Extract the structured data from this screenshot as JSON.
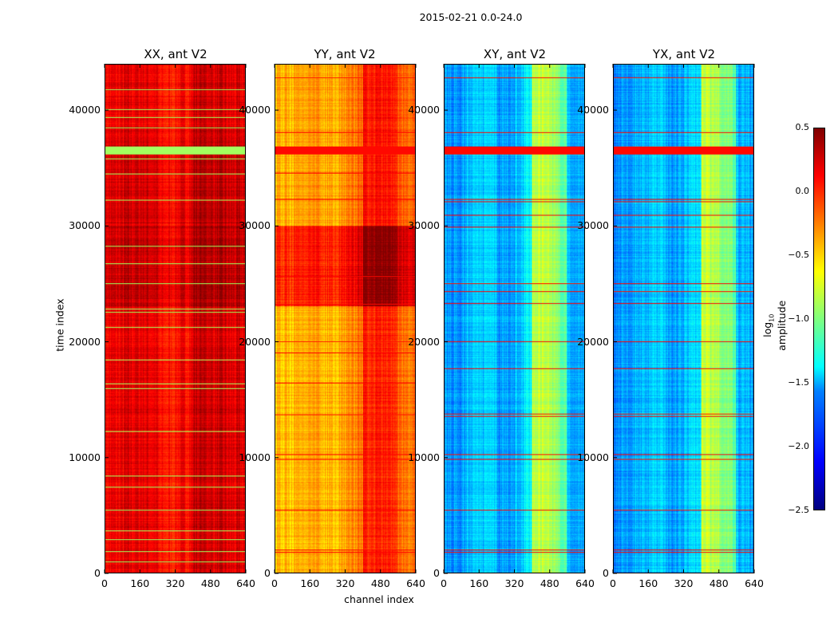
{
  "suptitle": "2015-02-21 0.0-24.0",
  "chart_data": [
    {
      "type": "heatmap",
      "title": "XX, ant V2",
      "xlabel": "",
      "ylabel": "time index",
      "xlim": [
        0,
        640
      ],
      "ylim": [
        0,
        44000
      ],
      "xticks": [
        "0",
        "160",
        "320",
        "480",
        "640"
      ],
      "yticks": [
        "0",
        "10000",
        "20000",
        "30000",
        "40000"
      ],
      "channel_profile": [
        0.15,
        0.2,
        0.22,
        0.05,
        0.1,
        0.3,
        0.25,
        0.2
      ],
      "time_segments": [
        {
          "from": 0,
          "to": 23000,
          "offset": 0
        },
        {
          "from": 23000,
          "to": 30000,
          "offset": 0.1
        },
        {
          "from": 30000,
          "to": 37000,
          "offset": 0.05
        },
        {
          "from": 37000,
          "to": 44000,
          "offset": 0
        }
      ],
      "flagged_rows": [
        900,
        1800,
        2800,
        3600,
        5400,
        7400,
        8300,
        12200,
        15900,
        16300,
        18400,
        21200,
        22500,
        22800,
        25000,
        26700,
        28200,
        32200,
        34500,
        35800,
        36600,
        38500,
        39400,
        40100,
        41800
      ],
      "flag_value": -0.9,
      "flag_band": [
        36200,
        36900
      ]
    },
    {
      "type": "heatmap",
      "title": "YY, ant V2",
      "xlabel": "channel index",
      "ylabel": "",
      "xlim": [
        0,
        640
      ],
      "ylim": [
        0,
        44000
      ],
      "xticks": [
        "0",
        "160",
        "320",
        "480",
        "640"
      ],
      "yticks": [
        "0",
        "10000",
        "20000",
        "30000",
        "40000"
      ],
      "channel_profile": [
        -0.45,
        -0.4,
        -0.38,
        -0.42,
        -0.35,
        0.05,
        0.0,
        -0.2
      ],
      "time_segments": [
        {
          "from": 0,
          "to": 23000,
          "offset": 0
        },
        {
          "from": 23000,
          "to": 30000,
          "offset": 0.45
        },
        {
          "from": 30000,
          "to": 44000,
          "offset": 0.05
        }
      ],
      "flagged_rows": [
        1700,
        1900,
        5400,
        9800,
        10200,
        13600,
        16400,
        19000,
        20000,
        23200,
        25600,
        32300,
        34600,
        38100,
        42800
      ],
      "flag_value": 0.1,
      "flag_band": [
        36200,
        36900
      ]
    },
    {
      "type": "heatmap",
      "title": "XY, ant V2",
      "xlabel": "",
      "ylabel": "",
      "xlim": [
        0,
        640
      ],
      "ylim": [
        0,
        44000
      ],
      "xticks": [
        "0",
        "160",
        "320",
        "480",
        "640"
      ],
      "yticks": [
        "0",
        "10000",
        "20000",
        "30000",
        "40000"
      ],
      "channel_profile": [
        -1.7,
        -1.6,
        -1.5,
        -1.65,
        -1.6,
        -0.8,
        -0.9,
        -1.6
      ],
      "time_segments": [
        {
          "from": 0,
          "to": 44000,
          "offset": 0
        }
      ],
      "flagged_rows": [
        1700,
        1900,
        5400,
        9800,
        10200,
        13500,
        13700,
        17600,
        20000,
        23300,
        24300,
        25000,
        29900,
        30900,
        32100,
        32300,
        38100,
        42800
      ],
      "flag_value": 0.1,
      "flag_band": [
        36200,
        36900
      ]
    },
    {
      "type": "heatmap",
      "title": "YX, ant V2",
      "xlabel": "",
      "ylabel": "",
      "xlim": [
        0,
        640
      ],
      "ylim": [
        0,
        44000
      ],
      "xticks": [
        "0",
        "160",
        "320",
        "480",
        "640"
      ],
      "yticks": [
        "0",
        "10000",
        "20000",
        "30000",
        "40000"
      ],
      "channel_profile": [
        -1.7,
        -1.6,
        -1.5,
        -1.65,
        -1.6,
        -0.8,
        -0.9,
        -1.6
      ],
      "time_segments": [
        {
          "from": 0,
          "to": 44000,
          "offset": 0
        }
      ],
      "flagged_rows": [
        1700,
        1900,
        5400,
        9800,
        10200,
        13500,
        13700,
        17600,
        20000,
        23300,
        24300,
        25000,
        29900,
        30900,
        32100,
        32300,
        38100,
        42800
      ],
      "flag_value": 0.1,
      "flag_band": [
        36200,
        36900
      ]
    }
  ],
  "colorbar": {
    "label": "log10 amplitude",
    "label_main": "log",
    "label_sub": "10",
    "label_rest": " amplitude",
    "range": [
      -2.5,
      0.5
    ],
    "ticks": [
      "0.5",
      "0.0",
      "−0.5",
      "−1.0",
      "−1.5",
      "−2.0",
      "−2.5"
    ],
    "colormap": "jet"
  }
}
